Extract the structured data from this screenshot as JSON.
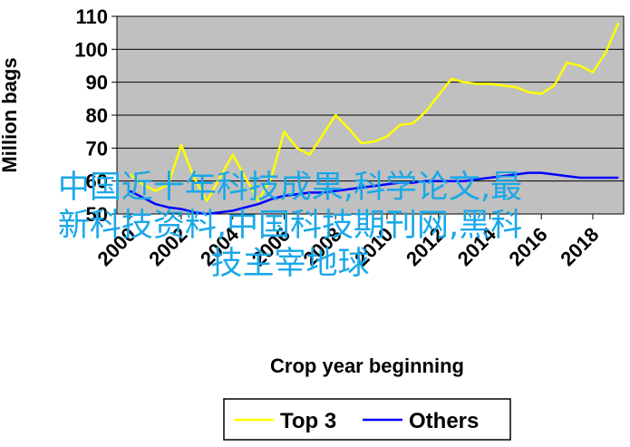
{
  "chart_data": {
    "type": "line",
    "xlabel": "Crop year beginning",
    "ylabel": "Million bags",
    "xlim": [
      1999.5,
      2019.2
    ],
    "ylim": [
      50,
      110
    ],
    "yticks": [
      50,
      60,
      70,
      80,
      90,
      100,
      110
    ],
    "xticks": [
      "2000",
      "2002",
      "2004",
      "2006",
      "2008",
      "2010",
      "2012",
      "2014",
      "2016",
      "2018"
    ],
    "xtick_values": [
      2000,
      2002,
      2004,
      2006,
      2008,
      2010,
      2012,
      2014,
      2016,
      2018
    ],
    "grid": "horizontal",
    "legend_position": "bottom",
    "series": [
      {
        "name": "Top 3",
        "color": "#ffff00",
        "x": [
          2000,
          2000.5,
          2001,
          2001.5,
          2002,
          2002.5,
          2003,
          2003.5,
          2004,
          2004.5,
          2005,
          2005.5,
          2006,
          2006.5,
          2007,
          2007.5,
          2008,
          2008.5,
          2009,
          2009.5,
          2010,
          2010.5,
          2011,
          2011.5,
          2012,
          2012.5,
          2013,
          2013.5,
          2014,
          2014.5,
          2015,
          2015.5,
          2016,
          2016.5,
          2017,
          2017.5,
          2018,
          2018.5,
          2019
        ],
        "values": [
          62,
          59,
          57,
          59,
          71,
          61,
          54,
          61,
          68,
          61,
          54,
          61,
          75,
          70,
          68,
          74,
          80,
          76,
          71.5,
          72,
          73.5,
          77,
          77.5,
          81,
          86,
          91,
          90,
          89.5,
          89.5,
          89,
          88.5,
          87,
          86.5,
          89,
          96,
          95,
          93,
          99,
          108
        ]
      },
      {
        "name": "Others",
        "color": "#0000ff",
        "x": [
          2000,
          2000.5,
          2001,
          2001.5,
          2002,
          2002.5,
          2003,
          2003.5,
          2004,
          2004.5,
          2005,
          2005.5,
          2006,
          2006.5,
          2007,
          2007.5,
          2008,
          2008.5,
          2009,
          2009.5,
          2010,
          2010.5,
          2011,
          2011.5,
          2012,
          2012.5,
          2013,
          2013.5,
          2014,
          2014.5,
          2015,
          2015.5,
          2016,
          2016.5,
          2017,
          2017.5,
          2018,
          2018.5,
          2019
        ],
        "values": [
          57,
          55,
          53,
          52,
          51.5,
          50.5,
          50,
          50.5,
          51,
          52,
          53,
          54.5,
          55.5,
          56,
          56.5,
          56.5,
          57,
          57.5,
          58,
          58.5,
          59,
          59.5,
          59.5,
          60,
          60,
          60,
          60,
          60.5,
          61,
          61.5,
          62,
          62.5,
          62.5,
          62,
          61.5,
          61,
          61,
          61,
          61
        ]
      }
    ]
  },
  "overlay": {
    "line1": "中国近十年科技成果,科学论文,最",
    "line2": "新科技资料,中国科技期刊网,黑科",
    "line3": "技主宰地球",
    "color": "#1aa8e8"
  }
}
